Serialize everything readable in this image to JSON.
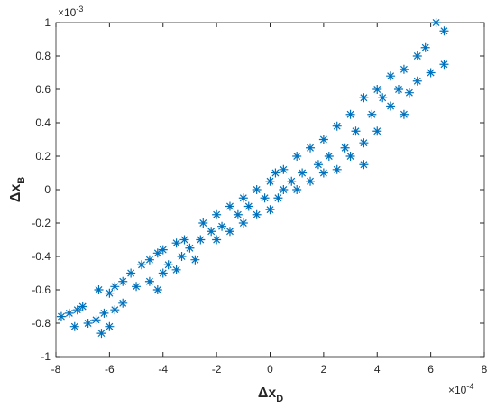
{
  "chart_data": {
    "type": "scatter",
    "xlabel": "Δx",
    "xlabel_subscript": "D",
    "ylabel": "Δx",
    "ylabel_subscript": "B",
    "x_multiplier": "×10",
    "x_multiplier_exponent": "-4",
    "y_multiplier": "×10",
    "y_multiplier_exponent": "-3",
    "xlim": [
      -8,
      8
    ],
    "xticks": [
      -8,
      -6,
      -4,
      -2,
      0,
      2,
      4,
      6,
      8
    ],
    "ylim": [
      -1,
      1
    ],
    "yticks": [
      -1,
      -0.8,
      -0.6,
      -0.4,
      -0.2,
      0,
      0.2,
      0.4,
      0.6,
      0.8,
      1
    ],
    "grid": false,
    "marker": "asterisk",
    "color": "#0072bd",
    "x": [
      -7.8,
      -7.5,
      -7.2,
      -7,
      -7.3,
      -6.8,
      -6.5,
      -6.3,
      -6.2,
      -6.4,
      -6,
      -5.8,
      -5.5,
      -5.2,
      -5,
      -5.5,
      -5.8,
      -6,
      -4.8,
      -4.5,
      -4.2,
      -4,
      -4.5,
      -4.2,
      -4,
      -3.8,
      -3.5,
      -3.3,
      -3.5,
      -3.2,
      -3,
      -2.8,
      -2.6,
      -2.5,
      -2.2,
      -2,
      -2,
      -1.8,
      -1.5,
      -1.5,
      -1.2,
      -1,
      -1,
      -0.8,
      -0.5,
      -0.5,
      -0.2,
      0,
      0,
      0.2,
      0.3,
      0.5,
      0.5,
      0.8,
      1,
      1,
      1.2,
      1.5,
      1.5,
      1.8,
      2,
      2,
      2.2,
      2.5,
      2.5,
      2.8,
      3,
      3,
      3.2,
      3.5,
      3.5,
      3.8,
      4,
      4,
      4.2,
      4.5,
      4.5,
      4.8,
      5,
      5.2,
      5.5,
      5.5,
      5.8,
      6,
      6.2,
      6.5,
      6.5,
      5,
      3.5
    ],
    "values": [
      -0.76,
      -0.74,
      -0.72,
      -0.7,
      -0.82,
      -0.8,
      -0.78,
      -0.86,
      -0.74,
      -0.6,
      -0.62,
      -0.58,
      -0.55,
      -0.5,
      -0.58,
      -0.68,
      -0.72,
      -0.82,
      -0.45,
      -0.42,
      -0.38,
      -0.36,
      -0.55,
      -0.6,
      -0.5,
      -0.45,
      -0.48,
      -0.4,
      -0.32,
      -0.3,
      -0.35,
      -0.42,
      -0.3,
      -0.2,
      -0.25,
      -0.3,
      -0.15,
      -0.22,
      -0.1,
      -0.25,
      -0.15,
      -0.05,
      -0.2,
      -0.1,
      0,
      -0.15,
      -0.05,
      0.05,
      -0.12,
      0.1,
      -0.05,
      0.12,
      0,
      0.05,
      0.2,
      0,
      0.1,
      0.25,
      0.05,
      0.15,
      0.3,
      0.1,
      0.2,
      0.38,
      0.12,
      0.25,
      0.45,
      0.2,
      0.35,
      0.55,
      0.28,
      0.45,
      0.6,
      0.35,
      0.55,
      0.5,
      0.68,
      0.6,
      0.72,
      0.58,
      0.8,
      0.65,
      0.85,
      0.7,
      1,
      0.95,
      0.75,
      0.45,
      0.15
    ]
  }
}
